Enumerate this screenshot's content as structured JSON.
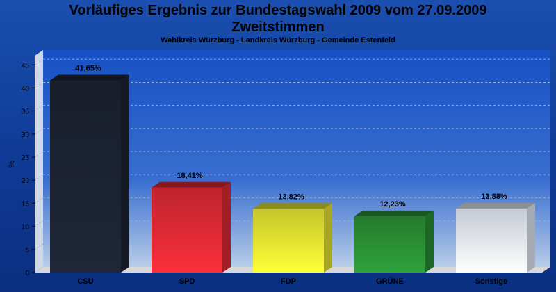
{
  "chart_data": {
    "type": "bar",
    "title": "Vorläufiges Ergebnis zur Bundestagswahl 2009 vom 27.09.2009",
    "title2": "Zweitstimmen",
    "subtitle": "Wahlkreis Würzburg - Landkreis Würzburg - Gemeinde Estenfeld",
    "ylabel": "%",
    "xlabel": "",
    "ylim": [
      0,
      47
    ],
    "yticks": [
      0,
      5,
      10,
      15,
      20,
      25,
      30,
      35,
      40,
      45
    ],
    "grid": true,
    "categories": [
      "CSU",
      "SPD",
      "FDP",
      "GRÜNE",
      "Sonstige"
    ],
    "values": [
      41.65,
      18.41,
      13.82,
      12.23,
      13.88
    ],
    "value_labels": [
      "41,65%",
      "18,41%",
      "13,82%",
      "12,23%",
      "13,88%"
    ],
    "colors": [
      "#1c2333",
      "#e02a35",
      "#e8e832",
      "#2a9135",
      "#e6eef8"
    ]
  }
}
